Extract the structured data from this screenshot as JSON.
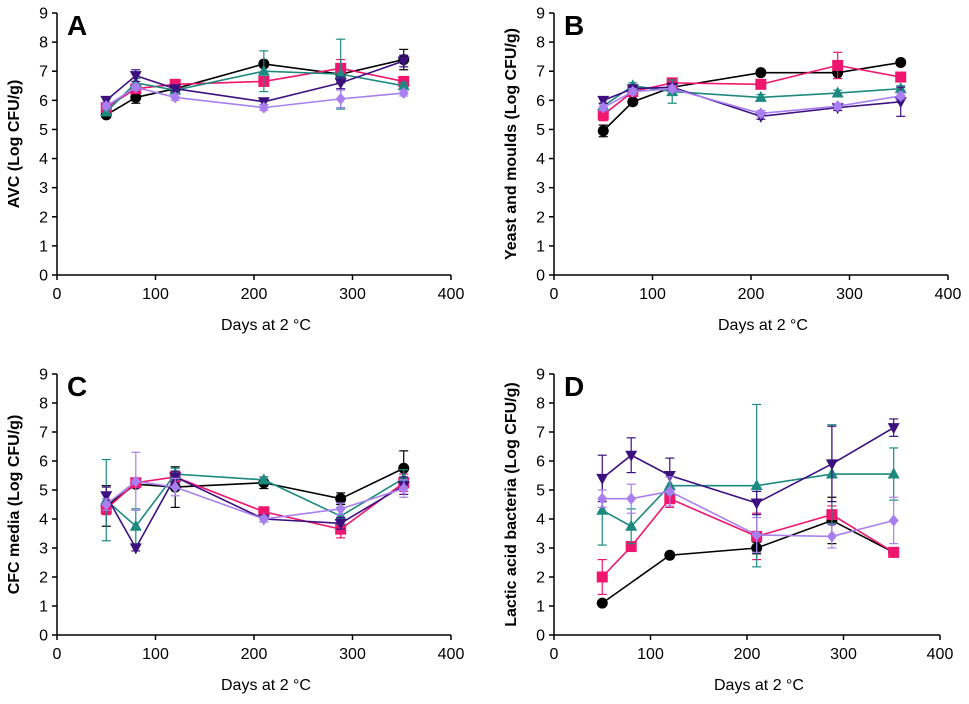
{
  "series_styles": [
    {
      "name": "black",
      "color": "#000000",
      "marker": "circle"
    },
    {
      "name": "pink",
      "color": "#f0166e",
      "marker": "square"
    },
    {
      "name": "teal",
      "color": "#1d8a80",
      "marker": "triangle-up"
    },
    {
      "name": "purple",
      "color": "#3d1080",
      "marker": "triangle-down"
    },
    {
      "name": "lilac",
      "color": "#a97ff0",
      "marker": "diamond"
    }
  ],
  "chart_data": [
    {
      "type": "line",
      "panel": "A",
      "title": "",
      "xlabel": "Days at 2 °C",
      "ylabel": "AVC (Log CFU/g)",
      "xlim": [
        0,
        400
      ],
      "ylim": [
        0,
        9
      ],
      "xticks": [
        0,
        100,
        200,
        300,
        400
      ],
      "yticks": [
        0,
        1,
        2,
        3,
        4,
        5,
        6,
        7,
        8,
        9
      ],
      "x": [
        50,
        80,
        120,
        210,
        288,
        352
      ],
      "series": [
        {
          "name": "black",
          "values": [
            5.5,
            6.1,
            6.4,
            7.25,
            6.9,
            7.4
          ],
          "errors": [
            0.1,
            0.2,
            0.1,
            0.1,
            0.3,
            0.35
          ]
        },
        {
          "name": "pink",
          "values": [
            5.75,
            6.4,
            6.55,
            6.65,
            7.1,
            6.65
          ],
          "errors": [
            0.1,
            0.15,
            0.1,
            0.1,
            0.3,
            0.15
          ]
        },
        {
          "name": "teal",
          "values": [
            5.6,
            6.6,
            6.35,
            7.0,
            6.9,
            6.5
          ],
          "errors": [
            0.1,
            0.15,
            0.15,
            0.7,
            1.2,
            0.1
          ]
        },
        {
          "name": "purple",
          "values": [
            6.0,
            6.85,
            6.4,
            5.95,
            6.6,
            7.35
          ],
          "errors": [
            0.1,
            0.2,
            0.1,
            0.1,
            0.2,
            0.2
          ]
        },
        {
          "name": "lilac",
          "values": [
            5.8,
            6.45,
            6.1,
            5.75,
            6.05,
            6.25
          ],
          "errors": [
            0.1,
            0.1,
            0.1,
            0.1,
            0.3,
            0.1
          ]
        }
      ]
    },
    {
      "type": "line",
      "panel": "B",
      "title": "",
      "xlabel": "Days at 2 °C",
      "ylabel": "Yeast and moulds (Log CFU/g)",
      "xlim": [
        0,
        400
      ],
      "ylim": [
        0,
        9
      ],
      "xticks": [
        0,
        100,
        200,
        300,
        400
      ],
      "yticks": [
        0,
        1,
        2,
        3,
        4,
        5,
        6,
        7,
        8,
        9
      ],
      "x": [
        50,
        80,
        120,
        210,
        288,
        352
      ],
      "series": [
        {
          "name": "black",
          "values": [
            4.95,
            5.95,
            6.45,
            6.95,
            6.95,
            7.3
          ],
          "errors": [
            0.2,
            0.1,
            0.1,
            0.1,
            0.2,
            0.1
          ]
        },
        {
          "name": "pink",
          "values": [
            5.5,
            6.3,
            6.6,
            6.55,
            7.2,
            6.8
          ],
          "errors": [
            0.2,
            0.1,
            0.1,
            0.1,
            0.45,
            0.1
          ]
        },
        {
          "name": "teal",
          "values": [
            5.8,
            6.5,
            6.3,
            6.1,
            6.25,
            6.4
          ],
          "errors": [
            0.1,
            0.1,
            0.4,
            0.1,
            0.1,
            0.1
          ]
        },
        {
          "name": "purple",
          "values": [
            6.0,
            6.4,
            6.45,
            5.45,
            5.75,
            5.95
          ],
          "errors": [
            0.1,
            0.1,
            0.1,
            0.1,
            0.1,
            0.5
          ]
        },
        {
          "name": "lilac",
          "values": [
            5.75,
            6.3,
            6.4,
            5.55,
            5.8,
            6.15
          ],
          "errors": [
            0.1,
            0.1,
            0.1,
            0.1,
            0.1,
            0.1
          ]
        }
      ]
    },
    {
      "type": "line",
      "panel": "C",
      "title": "",
      "xlabel": "Days at 2 °C",
      "ylabel": "CFC media  (Log CFU/g)",
      "xlim": [
        0,
        400
      ],
      "ylim": [
        0,
        9
      ],
      "xticks": [
        0,
        100,
        200,
        300,
        400
      ],
      "yticks": [
        0,
        1,
        2,
        3,
        4,
        5,
        6,
        7,
        8,
        9
      ],
      "x": [
        50,
        80,
        120,
        210,
        288,
        352
      ],
      "series": [
        {
          "name": "black",
          "values": [
            4.45,
            5.2,
            5.1,
            5.25,
            4.7,
            5.75
          ],
          "errors": [
            0.7,
            0.1,
            0.7,
            0.2,
            0.2,
            0.6
          ]
        },
        {
          "name": "pink",
          "values": [
            4.35,
            5.25,
            5.45,
            4.25,
            3.65,
            5.25
          ],
          "errors": [
            0.2,
            0.1,
            0.2,
            0.1,
            0.3,
            0.3
          ]
        },
        {
          "name": "teal",
          "values": [
            4.65,
            3.75,
            5.55,
            5.35,
            4.1,
            5.4
          ],
          "errors": [
            1.4,
            0.6,
            0.2,
            0.1,
            0.3,
            0.3
          ]
        },
        {
          "name": "purple",
          "values": [
            4.8,
            3.0,
            5.45,
            4.0,
            3.85,
            5.15
          ],
          "errors": [
            0.3,
            0.1,
            0.2,
            0.1,
            0.2,
            0.3
          ]
        },
        {
          "name": "lilac",
          "values": [
            4.5,
            5.3,
            5.1,
            4.0,
            4.35,
            5.05
          ],
          "errors": [
            0.2,
            1.0,
            0.3,
            0.1,
            0.2,
            0.3
          ]
        }
      ]
    },
    {
      "type": "line",
      "panel": "D",
      "title": "",
      "xlabel": "Days at 2 °C",
      "ylabel": "Lactic acid bacteria (Log CFU/g)",
      "xlim": [
        0,
        400
      ],
      "ylim": [
        0,
        9
      ],
      "xticks": [
        0,
        100,
        200,
        300,
        400
      ],
      "yticks": [
        0,
        1,
        2,
        3,
        4,
        5,
        6,
        7,
        8,
        9
      ],
      "x": [
        50,
        80,
        120,
        210,
        288,
        352
      ],
      "series": [
        {
          "name": "black",
          "values": [
            1.1,
            null,
            2.75,
            3.0,
            3.95,
            2.85
          ],
          "errors": [
            0.05,
            null,
            0.05,
            0.2,
            0.8,
            0.1
          ]
        },
        {
          "name": "pink",
          "values": [
            2.0,
            3.05,
            4.7,
            3.4,
            4.15,
            2.85
          ],
          "errors": [
            0.6,
            0.1,
            0.3,
            0.8,
            0.3,
            0.1
          ]
        },
        {
          "name": "teal",
          "values": [
            4.3,
            3.75,
            5.15,
            5.15,
            5.55,
            5.55
          ],
          "errors": [
            1.2,
            0.6,
            0.3,
            2.8,
            1.7,
            0.9
          ]
        },
        {
          "name": "purple",
          "values": [
            5.4,
            6.2,
            5.5,
            4.55,
            5.9,
            7.15
          ],
          "errors": [
            0.8,
            0.6,
            0.6,
            0.4,
            1.3,
            0.3
          ]
        },
        {
          "name": "lilac",
          "values": [
            4.7,
            4.7,
            4.95,
            3.45,
            3.4,
            3.95
          ],
          "errors": [
            0.3,
            0.5,
            0.5,
            0.6,
            0.4,
            0.8
          ]
        }
      ]
    }
  ]
}
